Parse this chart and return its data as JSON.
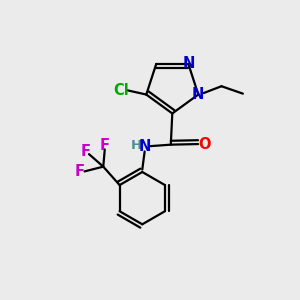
{
  "background_color": "#ebebeb",
  "bond_color": "#000000",
  "bond_width": 1.6,
  "atom_colors": {
    "N": "#0000cc",
    "O": "#ff0000",
    "Cl": "#00aa00",
    "F": "#cc00cc",
    "H": "#4a9090",
    "C": "#000000"
  }
}
